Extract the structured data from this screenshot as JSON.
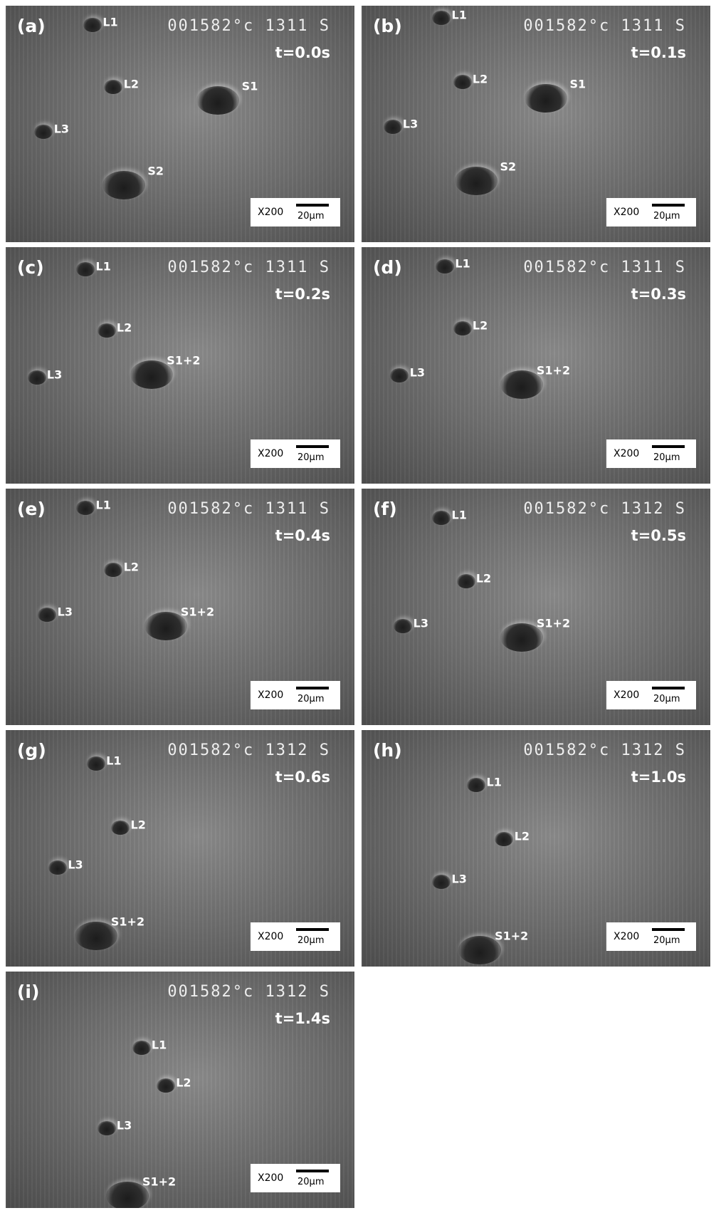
{
  "panels": [
    {
      "label": "(a)",
      "stamp": "001582°c 1311 S",
      "time": "t=0.0s",
      "features": [
        "L1",
        "L2",
        "L3",
        "S1",
        "S2"
      ],
      "scale": {
        "magnification": "X200",
        "bar": "20μm"
      }
    },
    {
      "label": "(b)",
      "stamp": "001582°c 1311 S",
      "time": "t=0.1s",
      "features": [
        "L1",
        "L2",
        "L3",
        "S1",
        "S2"
      ],
      "scale": {
        "magnification": "X200",
        "bar": "20μm"
      }
    },
    {
      "label": "(c)",
      "stamp": "001582°c 1311 S",
      "time": "t=0.2s",
      "features": [
        "L1",
        "L2",
        "L3",
        "S1+2"
      ],
      "scale": {
        "magnification": "X200",
        "bar": "20μm"
      }
    },
    {
      "label": "(d)",
      "stamp": "001582°c 1311 S",
      "time": "t=0.3s",
      "features": [
        "L1",
        "L2",
        "L3",
        "S1+2"
      ],
      "scale": {
        "magnification": "X200",
        "bar": "20μm"
      }
    },
    {
      "label": "(e)",
      "stamp": "001582°c 1311 S",
      "time": "t=0.4s",
      "features": [
        "L1",
        "L2",
        "L3",
        "S1+2"
      ],
      "scale": {
        "magnification": "X200",
        "bar": "20μm"
      }
    },
    {
      "label": "(f)",
      "stamp": "001582°c 1312 S",
      "time": "t=0.5s",
      "features": [
        "L1",
        "L2",
        "L3",
        "S1+2"
      ],
      "scale": {
        "magnification": "X200",
        "bar": "20μm"
      }
    },
    {
      "label": "(g)",
      "stamp": "001582°c 1312 S",
      "time": "t=0.6s",
      "features": [
        "L1",
        "L2",
        "L3",
        "S1+2"
      ],
      "scale": {
        "magnification": "X200",
        "bar": "20μm"
      }
    },
    {
      "label": "(h)",
      "stamp": "001582°c 1312 S",
      "time": "t=1.0s",
      "features": [
        "L1",
        "L2",
        "L3",
        "S1+2"
      ],
      "scale": {
        "magnification": "X200",
        "bar": "20μm"
      }
    },
    {
      "label": "(i)",
      "stamp": "001582°c 1312 S",
      "time": "t=1.4s",
      "features": [
        "L1",
        "L2",
        "L3",
        "S1+2"
      ],
      "scale": {
        "magnification": "X200",
        "bar": "20μm"
      }
    }
  ]
}
